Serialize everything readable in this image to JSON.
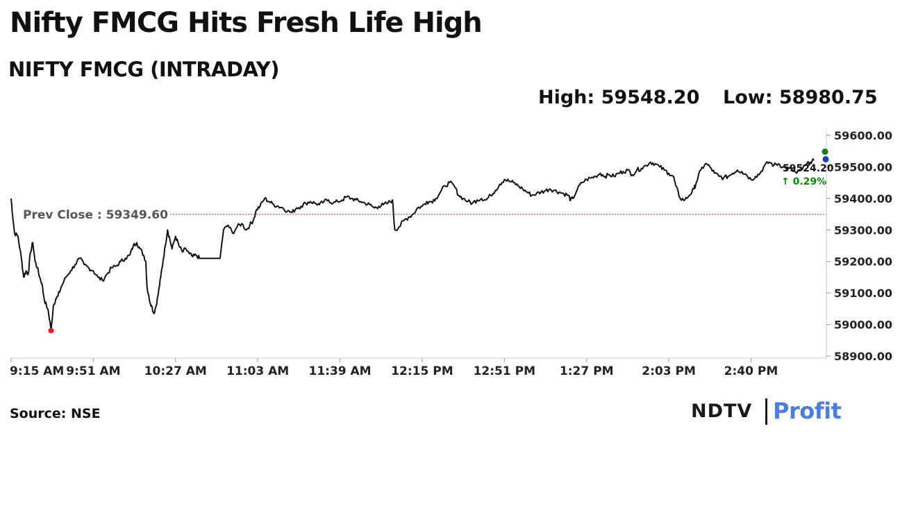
{
  "headline": "Nifty FMCG Hits Fresh Life High",
  "subtitle": "NIFTY FMCG (INTRADAY)",
  "stats": {
    "high": "High: 59548.20",
    "low": "Low: 58980.75"
  },
  "source": "Source: NSE",
  "logo": {
    "left": "NDTV",
    "right": "Profit"
  },
  "colors": {
    "line": "#111111",
    "prev_close": "#d04040",
    "low_dot": "#e02020",
    "change_up": "#0a8a0a",
    "logo_blue": "#4a7fe0"
  },
  "chart_data": {
    "type": "line",
    "title": "NIFTY FMCG (INTRADAY)",
    "x_ticks": [
      "9:15 AM",
      "9:51 AM",
      "10:27 AM",
      "11:03 AM",
      "11:39 AM",
      "12:15 PM",
      "12:51 PM",
      "1:27 PM",
      "2:03 PM",
      "2:40 PM"
    ],
    "y_ticks": [
      "58900.00",
      "59000.00",
      "59100.00",
      "59200.00",
      "59300.00",
      "59400.00",
      "59500.00",
      "59600.00"
    ],
    "ylim": [
      58900,
      59600
    ],
    "xlim_minutes_after_915": [
      0,
      357
    ],
    "prev_close": 59349.6,
    "prev_close_label": "Prev Close : 59349.60",
    "last_value_label": "59524.20",
    "change_label": "↑ 0.29%",
    "high": 59548.2,
    "low": 58980.75,
    "series": [
      {
        "points": [
          [
            0,
            59400
          ],
          [
            0.6,
            59350
          ],
          [
            1.5,
            59290
          ],
          [
            3,
            59280
          ],
          [
            4.5,
            59210
          ],
          [
            5.5,
            59150
          ],
          [
            6.5,
            59170
          ],
          [
            7.5,
            59160
          ],
          [
            8.5,
            59230
          ],
          [
            9.5,
            59260
          ],
          [
            10.5,
            59200
          ],
          [
            11.5,
            59180
          ],
          [
            12.5,
            59150
          ],
          [
            13.5,
            59130
          ],
          [
            14.5,
            59080
          ],
          [
            16,
            59050
          ],
          [
            17,
            59010
          ],
          [
            17.5,
            58981
          ],
          [
            18.5,
            59060
          ],
          [
            19.5,
            59080
          ],
          [
            20.5,
            59090
          ],
          [
            22,
            59120
          ],
          [
            24,
            59150
          ],
          [
            26,
            59170
          ],
          [
            28,
            59190
          ],
          [
            30,
            59210
          ],
          [
            32,
            59190
          ],
          [
            34,
            59180
          ],
          [
            36,
            59170
          ],
          [
            38,
            59150
          ],
          [
            40,
            59140
          ],
          [
            42,
            59160
          ],
          [
            44,
            59180
          ],
          [
            46,
            59185
          ],
          [
            48,
            59200
          ],
          [
            50,
            59210
          ],
          [
            52,
            59220
          ],
          [
            53.5,
            59250
          ],
          [
            55,
            59260
          ],
          [
            56.5,
            59240
          ],
          [
            58,
            59220
          ],
          [
            59,
            59200
          ],
          [
            59.5,
            59120
          ],
          [
            60.5,
            59080
          ],
          [
            61.5,
            59060
          ],
          [
            62.5,
            59035
          ],
          [
            63.5,
            59060
          ],
          [
            64.5,
            59100
          ],
          [
            65.5,
            59150
          ],
          [
            66.5,
            59200
          ],
          [
            67.5,
            59250
          ],
          [
            68.5,
            59300
          ],
          [
            69.5,
            59270
          ],
          [
            70.5,
            59240
          ],
          [
            72,
            59280
          ],
          [
            73.5,
            59250
          ],
          [
            75,
            59230
          ],
          [
            76.5,
            59240
          ],
          [
            78,
            59225
          ],
          [
            79.5,
            59215
          ],
          [
            81,
            59220
          ],
          [
            82.5,
            59210
          ],
          [
            91.5,
            59210
          ],
          [
            93,
            59300
          ],
          [
            95,
            59315
          ],
          [
            97,
            59290
          ],
          [
            99,
            59310
          ],
          [
            101,
            59320
          ],
          [
            103,
            59300
          ],
          [
            104.5,
            59315
          ],
          [
            106,
            59330
          ],
          [
            107.5,
            59365
          ],
          [
            109,
            59375
          ],
          [
            111,
            59400
          ],
          [
            113,
            59390
          ],
          [
            115,
            59380
          ],
          [
            117,
            59375
          ],
          [
            119,
            59370
          ],
          [
            121,
            59360
          ],
          [
            123,
            59355
          ],
          [
            125,
            59370
          ],
          [
            127,
            59375
          ],
          [
            129,
            59385
          ],
          [
            131,
            59390
          ],
          [
            133,
            59385
          ],
          [
            135,
            59380
          ],
          [
            137,
            59390
          ],
          [
            139,
            59395
          ],
          [
            141,
            59385
          ],
          [
            143,
            59390
          ],
          [
            145,
            59395
          ],
          [
            147,
            59405
          ],
          [
            149,
            59400
          ],
          [
            151,
            59395
          ],
          [
            153,
            59390
          ],
          [
            155,
            59385
          ],
          [
            157,
            59380
          ],
          [
            159,
            59370
          ],
          [
            161,
            59375
          ],
          [
            163,
            59380
          ],
          [
            165,
            59385
          ],
          [
            167,
            59395
          ],
          [
            168,
            59300
          ],
          [
            170,
            59310
          ],
          [
            172,
            59330
          ],
          [
            174,
            59340
          ],
          [
            176,
            59350
          ],
          [
            178,
            59370
          ],
          [
            180,
            59375
          ],
          [
            182,
            59390
          ],
          [
            184,
            59390
          ],
          [
            186,
            59400
          ],
          [
            188,
            59420
          ],
          [
            190,
            59440
          ],
          [
            192,
            59450
          ],
          [
            194,
            59440
          ],
          [
            196,
            59410
          ],
          [
            198,
            59400
          ],
          [
            200,
            59390
          ],
          [
            202,
            59385
          ],
          [
            204,
            59395
          ],
          [
            206,
            59400
          ],
          [
            208,
            59395
          ],
          [
            210,
            59410
          ],
          [
            212,
            59425
          ],
          [
            214,
            59445
          ],
          [
            216,
            59460
          ],
          [
            218,
            59455
          ],
          [
            220,
            59450
          ],
          [
            222,
            59440
          ],
          [
            224,
            59430
          ],
          [
            226,
            59420
          ],
          [
            228,
            59410
          ],
          [
            230,
            59415
          ],
          [
            232,
            59420
          ],
          [
            234,
            59425
          ],
          [
            236,
            59430
          ],
          [
            238,
            59425
          ],
          [
            240,
            59420
          ],
          [
            242,
            59415
          ],
          [
            244,
            59410
          ],
          [
            245,
            59395
          ],
          [
            246,
            59400
          ],
          [
            248,
            59430
          ],
          [
            250,
            59450
          ],
          [
            252,
            59460
          ],
          [
            254,
            59465
          ],
          [
            256,
            59470
          ],
          [
            258,
            59480
          ],
          [
            260,
            59470
          ],
          [
            262,
            59475
          ],
          [
            264,
            59470
          ],
          [
            266,
            59480
          ],
          [
            268,
            59485
          ],
          [
            270,
            59490
          ],
          [
            272,
            59475
          ],
          [
            274,
            59490
          ],
          [
            276,
            59495
          ],
          [
            278,
            59505
          ],
          [
            280,
            59515
          ],
          [
            282,
            59510
          ],
          [
            284,
            59500
          ],
          [
            286,
            59490
          ],
          [
            288,
            59480
          ],
          [
            290,
            59470
          ],
          [
            291,
            59440
          ],
          [
            293,
            59400
          ],
          [
            295,
            59395
          ],
          [
            297,
            59410
          ],
          [
            299,
            59430
          ],
          [
            300,
            59450
          ],
          [
            302,
            59490
          ],
          [
            304,
            59510
          ],
          [
            306,
            59500
          ],
          [
            308,
            59480
          ],
          [
            310,
            59470
          ],
          [
            312,
            59465
          ],
          [
            314,
            59470
          ],
          [
            316,
            59480
          ],
          [
            318,
            59490
          ],
          [
            320,
            59485
          ],
          [
            322,
            59475
          ],
          [
            324,
            59460
          ],
          [
            326,
            59470
          ],
          [
            328,
            59480
          ],
          [
            330,
            59505
          ],
          [
            332,
            59515
          ],
          [
            334,
            59505
          ],
          [
            336,
            59510
          ],
          [
            338,
            59500
          ],
          [
            340,
            59495
          ],
          [
            342,
            59490
          ],
          [
            344,
            59480
          ],
          [
            346,
            59490
          ],
          [
            348,
            59505
          ],
          [
            350,
            59515
          ],
          [
            351.5,
            59520
          ]
        ]
      }
    ]
  }
}
